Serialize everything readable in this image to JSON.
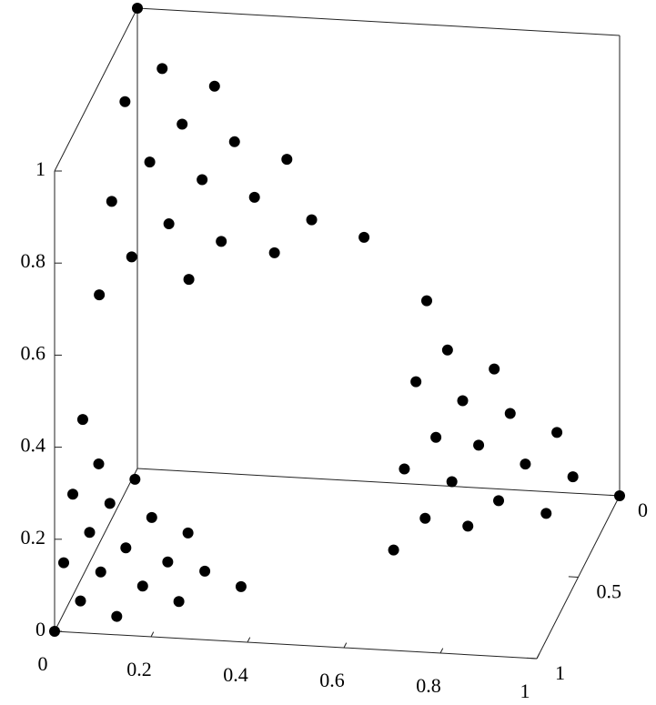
{
  "chart_data": {
    "type": "scatter3d",
    "x": [
      0,
      0.06,
      0.16,
      0,
      0.11,
      0.21,
      0.31,
      0.06,
      0.16,
      0.26,
      0.37,
      0.47,
      0,
      0.11,
      0.21,
      0.31,
      0.05,
      0.16,
      0,
      0.6,
      0.65,
      0.74,
      0.6,
      0.69,
      0.78,
      0.87,
      0.65,
      0.73,
      0.82,
      0.91,
      1,
      0.6,
      0.69,
      0.78,
      0.87,
      0.65,
      0.73,
      0.6,
      0,
      0.04,
      0.11,
      0,
      0.07,
      0.15,
      0.22,
      0.04,
      0.11,
      0.19,
      0.26,
      0.33,
      0,
      0.07,
      0.15,
      0.22,
      0.04,
      0.11,
      0
    ],
    "y": [
      0,
      0.05,
      0,
      0.15,
      0.1,
      0.05,
      0,
      0.2,
      0.15,
      0.1,
      0.05,
      0,
      0.31,
      0.26,
      0.21,
      0.15,
      0.36,
      0.31,
      0.46,
      0,
      0.04,
      0,
      0.13,
      0.09,
      0.04,
      0,
      0.18,
      0.13,
      0.09,
      0.04,
      0,
      0.27,
      0.22,
      0.18,
      0.13,
      0.31,
      0.26,
      0.4,
      0.66,
      0.7,
      0.67,
      0.78,
      0.74,
      0.7,
      0.67,
      0.81,
      0.78,
      0.74,
      0.7,
      0.67,
      0.89,
      0.85,
      0.81,
      0.78,
      0.92,
      0.89,
      1
    ],
    "z": [
      1,
      0.89,
      0.84,
      0.85,
      0.79,
      0.74,
      0.69,
      0.74,
      0.69,
      0.64,
      0.58,
      0.53,
      0.69,
      0.63,
      0.58,
      0.54,
      0.59,
      0.53,
      0.54,
      0.4,
      0.31,
      0.26,
      0.27,
      0.22,
      0.18,
      0.13,
      0.17,
      0.14,
      0.09,
      0.05,
      0,
      0.13,
      0.09,
      0.04,
      0,
      0.04,
      0.01,
      0,
      0.34,
      0.26,
      0.22,
      0.22,
      0.19,
      0.15,
      0.11,
      0.15,
      0.11,
      0.07,
      0.04,
      0,
      0.11,
      0.08,
      0.04,
      0,
      0.04,
      0,
      0
    ],
    "color": "#000000",
    "xlim": [
      0,
      1
    ],
    "ylim": [
      0,
      1
    ],
    "zlim": [
      0,
      1
    ],
    "xticks": [
      0,
      0.2,
      0.4,
      0.6,
      0.8,
      1
    ],
    "yticks": [
      0,
      0.5,
      1
    ],
    "zticks": [
      0,
      0.2,
      0.4,
      0.6,
      0.8,
      1
    ],
    "grid": false
  }
}
